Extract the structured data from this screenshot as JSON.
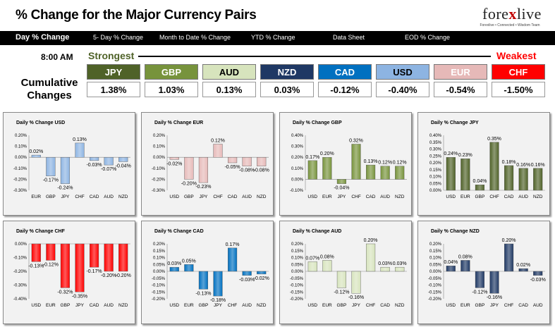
{
  "header": {
    "title": "% Change for the Major Currency Pairs",
    "logo_text_a": "fore",
    "logo_text_x": "x",
    "logo_text_b": "live",
    "logo_tagline": "Forexlive • Connected • Wisdom Team"
  },
  "tabs": [
    {
      "label": "Day % Change",
      "active": true
    },
    {
      "label": "5- Day % Change",
      "active": false
    },
    {
      "label": "Month to Date % Change",
      "active": false
    },
    {
      "label": "YTD % Change",
      "active": false
    },
    {
      "label": "Data Sheet",
      "active": false
    },
    {
      "label": "EOD % Change",
      "active": false
    }
  ],
  "summary": {
    "time": "8:00 AM",
    "strongest_label": "Strongest",
    "weakest_label": "Weakest",
    "cumulative_label_1": "Cumulative",
    "cumulative_label_2": "Changes",
    "currencies": [
      {
        "code": "JPY",
        "value": "1.38%",
        "color": "#4f6228",
        "text_color": "#ffffff"
      },
      {
        "code": "GBP",
        "value": "1.03%",
        "color": "#77933c",
        "text_color": "#ffffff"
      },
      {
        "code": "AUD",
        "value": "0.13%",
        "color": "#d7e4bd",
        "text_color": "#000000"
      },
      {
        "code": "NZD",
        "value": "0.03%",
        "color": "#1f3864",
        "text_color": "#ffffff"
      },
      {
        "code": "CAD",
        "value": "-0.12%",
        "color": "#0070c0",
        "text_color": "#ffffff"
      },
      {
        "code": "USD",
        "value": "-0.40%",
        "color": "#8db4e2",
        "text_color": "#000000"
      },
      {
        "code": "EUR",
        "value": "-0.54%",
        "color": "#e6b9b8",
        "text_color": "#ffffff"
      },
      {
        "code": "CHF",
        "value": "-1.50%",
        "color": "#ff0000",
        "text_color": "#ffffff"
      }
    ]
  },
  "chart_data": [
    {
      "type": "bar",
      "title": "Daily % Change USD",
      "categories": [
        "EUR",
        "GBP",
        "JPY",
        "CHF",
        "CAD",
        "AUD",
        "NZD"
      ],
      "values": [
        0.02,
        -0.17,
        -0.24,
        0.13,
        -0.03,
        -0.07,
        -0.04
      ],
      "labels": [
        "0.02%",
        "-0.17%",
        "-0.24%",
        "0.13%",
        "-0.03%",
        "-0.07%",
        "-0.04%"
      ],
      "yticks": [
        "0.20%",
        "0.10%",
        "0.00%",
        "-0.10%",
        "-0.20%",
        "-0.30%"
      ],
      "ylim": [
        -0.3,
        0.2
      ],
      "color": "#8db4e2"
    },
    {
      "type": "bar",
      "title": "Daily % Change EUR",
      "categories": [
        "USD",
        "GBP",
        "JPY",
        "CHF",
        "CAD",
        "AUD",
        "NZD"
      ],
      "values": [
        -0.02,
        -0.2,
        -0.23,
        0.12,
        -0.05,
        -0.08,
        -0.08
      ],
      "labels": [
        "-0.02%",
        "-0.20%",
        "-0.23%",
        "0.12%",
        "-0.05%",
        "-0.08%",
        "-0.08%"
      ],
      "yticks": [
        "0.20%",
        "0.10%",
        "0.00%",
        "-0.10%",
        "-0.20%",
        "-0.30%"
      ],
      "ylim": [
        -0.3,
        0.2
      ],
      "color": "#e6b9b8"
    },
    {
      "type": "bar",
      "title": "Daily % Change GBP",
      "categories": [
        "USD",
        "EUR",
        "JPY",
        "CHF",
        "CAD",
        "AUD",
        "NZD"
      ],
      "values": [
        0.17,
        0.2,
        -0.04,
        0.32,
        0.13,
        0.12,
        0.12
      ],
      "labels": [
        "0.17%",
        "0.20%",
        "-0.04%",
        "0.32%",
        "0.13%",
        "0.12%",
        "0.12%"
      ],
      "yticks": [
        "0.40%",
        "0.30%",
        "0.20%",
        "0.10%",
        "0.00%",
        "-0.10%"
      ],
      "ylim": [
        -0.1,
        0.4
      ],
      "color": "#77933c"
    },
    {
      "type": "bar",
      "title": "Daily % Change JPY",
      "categories": [
        "USD",
        "EUR",
        "GBP",
        "CHF",
        "CAD",
        "AUD",
        "NZD"
      ],
      "values": [
        0.24,
        0.23,
        0.04,
        0.35,
        0.18,
        0.16,
        0.16
      ],
      "labels": [
        "0.24%",
        "0.23%",
        "0.04%",
        "0.35%",
        "0.18%",
        "0.16%",
        "0.16%"
      ],
      "yticks": [
        "0.40%",
        "0.35%",
        "0.30%",
        "0.25%",
        "0.20%",
        "0.15%",
        "0.10%",
        "0.05%",
        "0.00%"
      ],
      "ylim": [
        0,
        0.4
      ],
      "color": "#4f6228"
    },
    {
      "type": "bar",
      "title": "Daily % Change CHF",
      "categories": [
        "USD",
        "EUR",
        "GBP",
        "JPY",
        "CAD",
        "AUD",
        "NZD"
      ],
      "values": [
        -0.13,
        -0.12,
        -0.32,
        -0.35,
        -0.17,
        -0.2,
        -0.2
      ],
      "labels": [
        "-0.13%",
        "-0.12%",
        "-0.32%",
        "-0.35%",
        "-0.17%",
        "-0.20%",
        "-0.20%"
      ],
      "yticks": [
        "0.00%",
        "-0.10%",
        "-0.20%",
        "-0.30%",
        "-0.40%"
      ],
      "ylim": [
        -0.4,
        0
      ],
      "color": "#ff0000"
    },
    {
      "type": "bar",
      "title": "Daily % Change CAD",
      "categories": [
        "USD",
        "EUR",
        "GBP",
        "JPY",
        "CHF",
        "AUD",
        "NZD"
      ],
      "values": [
        0.03,
        0.05,
        -0.13,
        -0.18,
        0.17,
        -0.03,
        -0.02
      ],
      "labels": [
        "0.03%",
        "0.05%",
        "-0.13%",
        "-0.18%",
        "0.17%",
        "-0.03%",
        "-0.02%"
      ],
      "yticks": [
        "0.20%",
        "0.15%",
        "0.10%",
        "0.05%",
        "0.00%",
        "-0.05%",
        "-0.10%",
        "-0.15%",
        "-0.20%"
      ],
      "ylim": [
        -0.2,
        0.2
      ],
      "color": "#0070c0"
    },
    {
      "type": "bar",
      "title": "Daily % Change AUD",
      "categories": [
        "USD",
        "EUR",
        "GBP",
        "JPY",
        "CHF",
        "CAD",
        "NZD"
      ],
      "values": [
        0.07,
        0.08,
        -0.12,
        -0.16,
        0.2,
        0.03,
        0.03
      ],
      "labels": [
        "0.07%",
        "0.08%",
        "-0.12%",
        "-0.16%",
        "0.20%",
        "0.03%",
        "0.03%"
      ],
      "yticks": [
        "0.20%",
        "0.15%",
        "0.10%",
        "0.05%",
        "0.00%",
        "-0.05%",
        "-0.10%",
        "-0.15%",
        "-0.20%"
      ],
      "ylim": [
        -0.2,
        0.2
      ],
      "color": "#d7e4bd"
    },
    {
      "type": "bar",
      "title": "Daily % Change NZD",
      "categories": [
        "USD",
        "EUR",
        "GBP",
        "JPY",
        "CHF",
        "CAD",
        "AUD"
      ],
      "values": [
        0.04,
        0.08,
        -0.12,
        -0.16,
        0.2,
        0.02,
        -0.03
      ],
      "labels": [
        "0.04%",
        "0.08%",
        "-0.12%",
        "-0.16%",
        "0.20%",
        "0.02%",
        "-0.03%"
      ],
      "yticks": [
        "0.20%",
        "0.15%",
        "0.10%",
        "0.05%",
        "0.00%",
        "-0.05%",
        "-0.10%",
        "-0.15%",
        "-0.20%"
      ],
      "ylim": [
        -0.2,
        0.2
      ],
      "color": "#1f3864"
    }
  ]
}
